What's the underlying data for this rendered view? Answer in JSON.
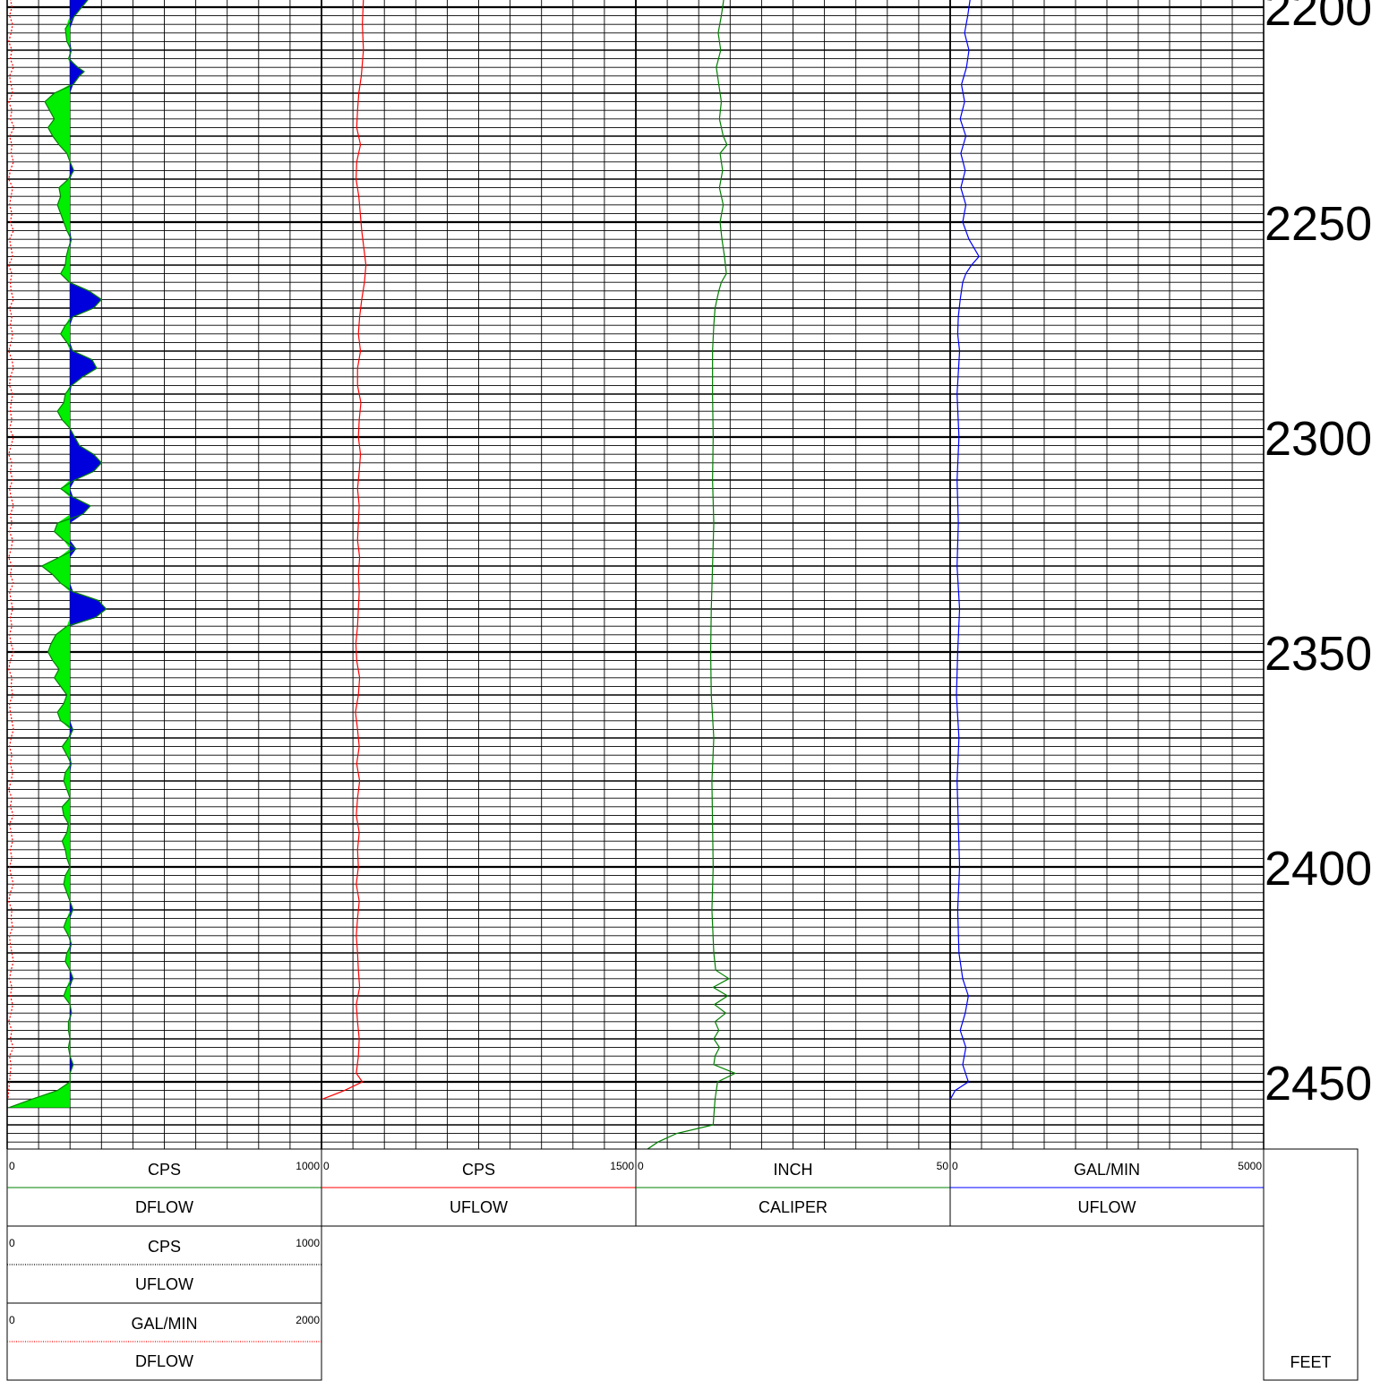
{
  "chart_data": {
    "type": "line",
    "depth_axis": {
      "unit": "FEET",
      "ylim": [
        2197,
        2469
      ],
      "labels": [
        2200,
        2250,
        2300,
        2350,
        2400,
        2450
      ]
    },
    "tracks": [
      {
        "curves": [
          {
            "name": "DFLOW",
            "unit": "CPS",
            "min": "0",
            "max": "1000",
            "color": "#008000",
            "style": "solid",
            "baseline": 200,
            "fill_left": "#00ee00",
            "fill_right": "#0000dd",
            "depth": [
              2198,
              2202,
              2205,
              2208,
              2210,
              2212,
              2214,
              2215,
              2216,
              2218,
              2220,
              2222,
              2224,
              2226,
              2228,
              2230,
              2232,
              2234,
              2236,
              2238,
              2240,
              2242,
              2244,
              2246,
              2248,
              2250,
              2252,
              2254,
              2256,
              2258,
              2260,
              2262,
              2264,
              2266,
              2268,
              2270,
              2272,
              2274,
              2276,
              2278,
              2280,
              2282,
              2284,
              2286,
              2288,
              2290,
              2292,
              2294,
              2296,
              2298,
              2300,
              2302,
              2304,
              2306,
              2308,
              2310,
              2312,
              2314,
              2316,
              2318,
              2320,
              2322,
              2324,
              2326,
              2328,
              2330,
              2332,
              2334,
              2336,
              2338,
              2340,
              2342,
              2344,
              2346,
              2348,
              2350,
              2352,
              2354,
              2356,
              2358,
              2360,
              2362,
              2364,
              2366,
              2368,
              2370,
              2372,
              2374,
              2376,
              2378,
              2380,
              2382,
              2384,
              2386,
              2388,
              2390,
              2392,
              2394,
              2396,
              2398,
              2400,
              2402,
              2404,
              2406,
              2408,
              2410,
              2412,
              2414,
              2416,
              2418,
              2420,
              2422,
              2424,
              2426,
              2428,
              2430,
              2432,
              2434,
              2436,
              2438,
              2440,
              2442,
              2444,
              2446,
              2448,
              2450,
              2452,
              2454,
              2456
            ],
            "value": [
              260,
              215,
              185,
              190,
              205,
              195,
              225,
              245,
              230,
              210,
              150,
              120,
              135,
              150,
              130,
              145,
              165,
              190,
              200,
              212,
              195,
              165,
              170,
              160,
              170,
              180,
              190,
              205,
              195,
              188,
              185,
              170,
              198,
              260,
              300,
              275,
              210,
              185,
              170,
              190,
              210,
              270,
              285,
              240,
              205,
              185,
              180,
              160,
              175,
              200,
              215,
              230,
              275,
              300,
              275,
              215,
              170,
              210,
              265,
              240,
              160,
              150,
              180,
              220,
              165,
              110,
              145,
              170,
              210,
              290,
              315,
              280,
              190,
              155,
              140,
              130,
              145,
              165,
              150,
              170,
              190,
              180,
              160,
              170,
              210,
              195,
              175,
              190,
              205,
              185,
              180,
              190,
              200,
              175,
              180,
              195,
              190,
              175,
              185,
              190,
              200,
              185,
              180,
              190,
              200,
              210,
              190,
              180,
              195,
              205,
              190,
              185,
              200,
              210,
              190,
              180,
              200,
              205,
              195,
              195,
              200,
              195,
              200,
              210,
              200,
              200,
              160,
              80,
              5
            ]
          },
          {
            "name": "UFLOW",
            "unit": "CPS",
            "min": "0",
            "max": "1000",
            "color": "#000000",
            "style": "dotted"
          },
          {
            "name": "DFLOW",
            "unit": "GAL/MIN",
            "min": "0",
            "max": "2000",
            "color": "#ff0000",
            "style": "dotted",
            "depth": [
              2198,
              2200,
              2202,
              2204,
              2206,
              2208,
              2210,
              2212,
              2214,
              2216,
              2218,
              2220,
              2222,
              2224,
              2226,
              2228,
              2230,
              2232,
              2234,
              2236,
              2238,
              2240,
              2242,
              2244,
              2246,
              2248,
              2250,
              2252,
              2254,
              2256,
              2258,
              2260,
              2262,
              2264,
              2266,
              2268,
              2270,
              2272,
              2274,
              2276,
              2278,
              2280,
              2282,
              2284,
              2286,
              2288,
              2290,
              2292,
              2294,
              2296,
              2298,
              2300,
              2302,
              2304,
              2306,
              2308,
              2310,
              2312,
              2314,
              2316,
              2318,
              2320,
              2322,
              2324,
              2326,
              2328,
              2330,
              2332,
              2334,
              2336,
              2338,
              2340,
              2342,
              2344,
              2346,
              2348,
              2350,
              2352,
              2354,
              2356,
              2358,
              2360,
              2362,
              2364,
              2366,
              2368,
              2370,
              2372,
              2374,
              2376,
              2378,
              2380,
              2382,
              2384,
              2386,
              2388,
              2390,
              2392,
              2394,
              2396,
              2398,
              2400,
              2402,
              2404,
              2406,
              2408,
              2410,
              2412,
              2414,
              2416,
              2418,
              2420,
              2422,
              2424,
              2426,
              2428,
              2430,
              2432,
              2434,
              2436,
              2438,
              2440,
              2442,
              2444,
              2446,
              2448,
              2450,
              2452,
              2454
            ],
            "value": [
              20,
              30,
              15,
              35,
              25,
              10,
              30,
              20,
              40,
              15,
              25,
              35,
              10,
              30,
              20,
              45,
              15,
              30,
              25,
              40,
              20,
              10,
              35,
              25,
              15,
              30,
              20,
              40,
              15,
              25,
              35,
              10,
              30,
              20,
              25,
              40,
              15,
              30,
              20,
              35,
              25,
              10,
              30,
              40,
              20,
              15,
              35,
              25,
              20,
              30,
              15,
              40,
              25,
              10,
              30,
              20,
              35,
              15,
              25,
              40,
              20,
              30,
              15,
              35,
              25,
              10,
              30,
              20,
              40,
              15,
              25,
              35,
              20,
              30,
              15,
              25,
              40,
              20,
              10,
              30,
              25,
              35,
              15,
              20,
              30,
              40,
              25,
              15,
              30,
              20,
              35,
              25,
              10,
              30,
              20,
              40,
              15,
              25,
              35,
              20,
              30,
              15,
              25,
              40,
              20,
              10,
              30,
              25,
              35,
              15,
              20,
              30,
              40,
              25,
              15,
              30,
              20,
              35,
              25,
              10,
              30,
              20,
              40,
              15,
              25,
              20,
              15,
              10,
              5
            ]
          }
        ]
      },
      {
        "curves": [
          {
            "name": "UFLOW",
            "unit": "CPS",
            "min": "0",
            "max": "1500",
            "color": "#ff0000",
            "style": "solid",
            "depth": [
              2198,
              2204,
              2210,
              2216,
              2220,
              2224,
              2228,
              2232,
              2236,
              2240,
              2244,
              2248,
              2252,
              2256,
              2260,
              2264,
              2268,
              2272,
              2276,
              2280,
              2284,
              2288,
              2292,
              2296,
              2300,
              2304,
              2308,
              2312,
              2316,
              2320,
              2324,
              2328,
              2332,
              2336,
              2340,
              2344,
              2348,
              2352,
              2356,
              2360,
              2364,
              2368,
              2372,
              2376,
              2380,
              2384,
              2388,
              2392,
              2396,
              2400,
              2404,
              2408,
              2412,
              2416,
              2420,
              2424,
              2428,
              2432,
              2436,
              2440,
              2444,
              2448,
              2450,
              2452,
              2454
            ],
            "value": [
              200,
              195,
              200,
              190,
              178,
              172,
              168,
              186,
              168,
              165,
              178,
              185,
              192,
              202,
              212,
              205,
              192,
              182,
              176,
              186,
              172,
              172,
              188,
              180,
              176,
              186,
              180,
              172,
              180,
              176,
              172,
              182,
              176,
              180,
              176,
              172,
              164,
              168,
              182,
              176,
              162,
              172,
              180,
              168,
              182,
              172,
              166,
              180,
              172,
              176,
              166,
              180,
              172,
              166,
              172,
              176,
              182,
              166,
              172,
              180,
              176,
              166,
              195,
              110,
              5
            ]
          }
        ]
      },
      {
        "curves": [
          {
            "name": "CALIPER",
            "unit": "INCH",
            "min": "0",
            "max": "50",
            "color": "#008000",
            "style": "solid",
            "depth": [
              2198,
              2202,
              2206,
              2210,
              2214,
              2218,
              2222,
              2226,
              2230,
              2232,
              2234,
              2238,
              2242,
              2246,
              2250,
              2254,
              2258,
              2262,
              2264,
              2266,
              2270,
              2274,
              2280,
              2290,
              2300,
              2310,
              2320,
              2330,
              2340,
              2350,
              2360,
              2370,
              2380,
              2390,
              2400,
              2410,
              2420,
              2424,
              2426,
              2428,
              2430,
              2432,
              2434,
              2436,
              2438,
              2440,
              2442,
              2444,
              2446,
              2448,
              2450,
              2454,
              2460,
              2462,
              2464,
              2466,
              2467
            ],
            "value": [
              14,
              13.6,
              13.1,
              13.5,
              12.8,
              13.2,
              13.6,
              13.3,
              13.9,
              14.5,
              13.4,
              13.8,
              13.3,
              13.9,
              13.4,
              13.7,
              14.1,
              14.4,
              13.6,
              13.2,
              12.6,
              12.4,
              12.2,
              12.2,
              12.3,
              12.2,
              12.4,
              12.2,
              12.0,
              11.9,
              12.0,
              12.4,
              12.1,
              12.2,
              12.3,
              12.1,
              12.4,
              12.7,
              14.8,
              12.3,
              14.6,
              12.5,
              14.3,
              12.6,
              13.2,
              12.4,
              13.3,
              12.6,
              12.4,
              15.8,
              13.0,
              12.6,
              12.3,
              6.5,
              3.5,
              1.5,
              0
            ]
          }
        ]
      },
      {
        "curves": [
          {
            "name": "UFLOW",
            "unit": "GAL/MIN",
            "min": "0",
            "max": "5000",
            "color": "#0000ff",
            "style": "solid",
            "depth": [
              2198,
              2202,
              2206,
              2210,
              2214,
              2218,
              2222,
              2226,
              2230,
              2234,
              2238,
              2242,
              2246,
              2250,
              2254,
              2256,
              2258,
              2260,
              2262,
              2264,
              2268,
              2272,
              2276,
              2280,
              2290,
              2300,
              2310,
              2320,
              2330,
              2340,
              2350,
              2360,
              2370,
              2380,
              2390,
              2400,
              2410,
              2420,
              2426,
              2430,
              2434,
              2438,
              2442,
              2446,
              2450,
              2452,
              2454
            ],
            "value": [
              320,
              280,
              230,
              300,
              260,
              180,
              230,
              160,
              250,
              170,
              240,
              170,
              250,
              200,
              300,
              380,
              460,
              340,
              250,
              200,
              160,
              130,
              120,
              150,
              110,
              140,
              110,
              130,
              110,
              150,
              120,
              100,
              140,
              110,
              130,
              150,
              120,
              140,
              200,
              290,
              240,
              160,
              250,
              200,
              290,
              80,
              5
            ]
          }
        ]
      }
    ]
  }
}
